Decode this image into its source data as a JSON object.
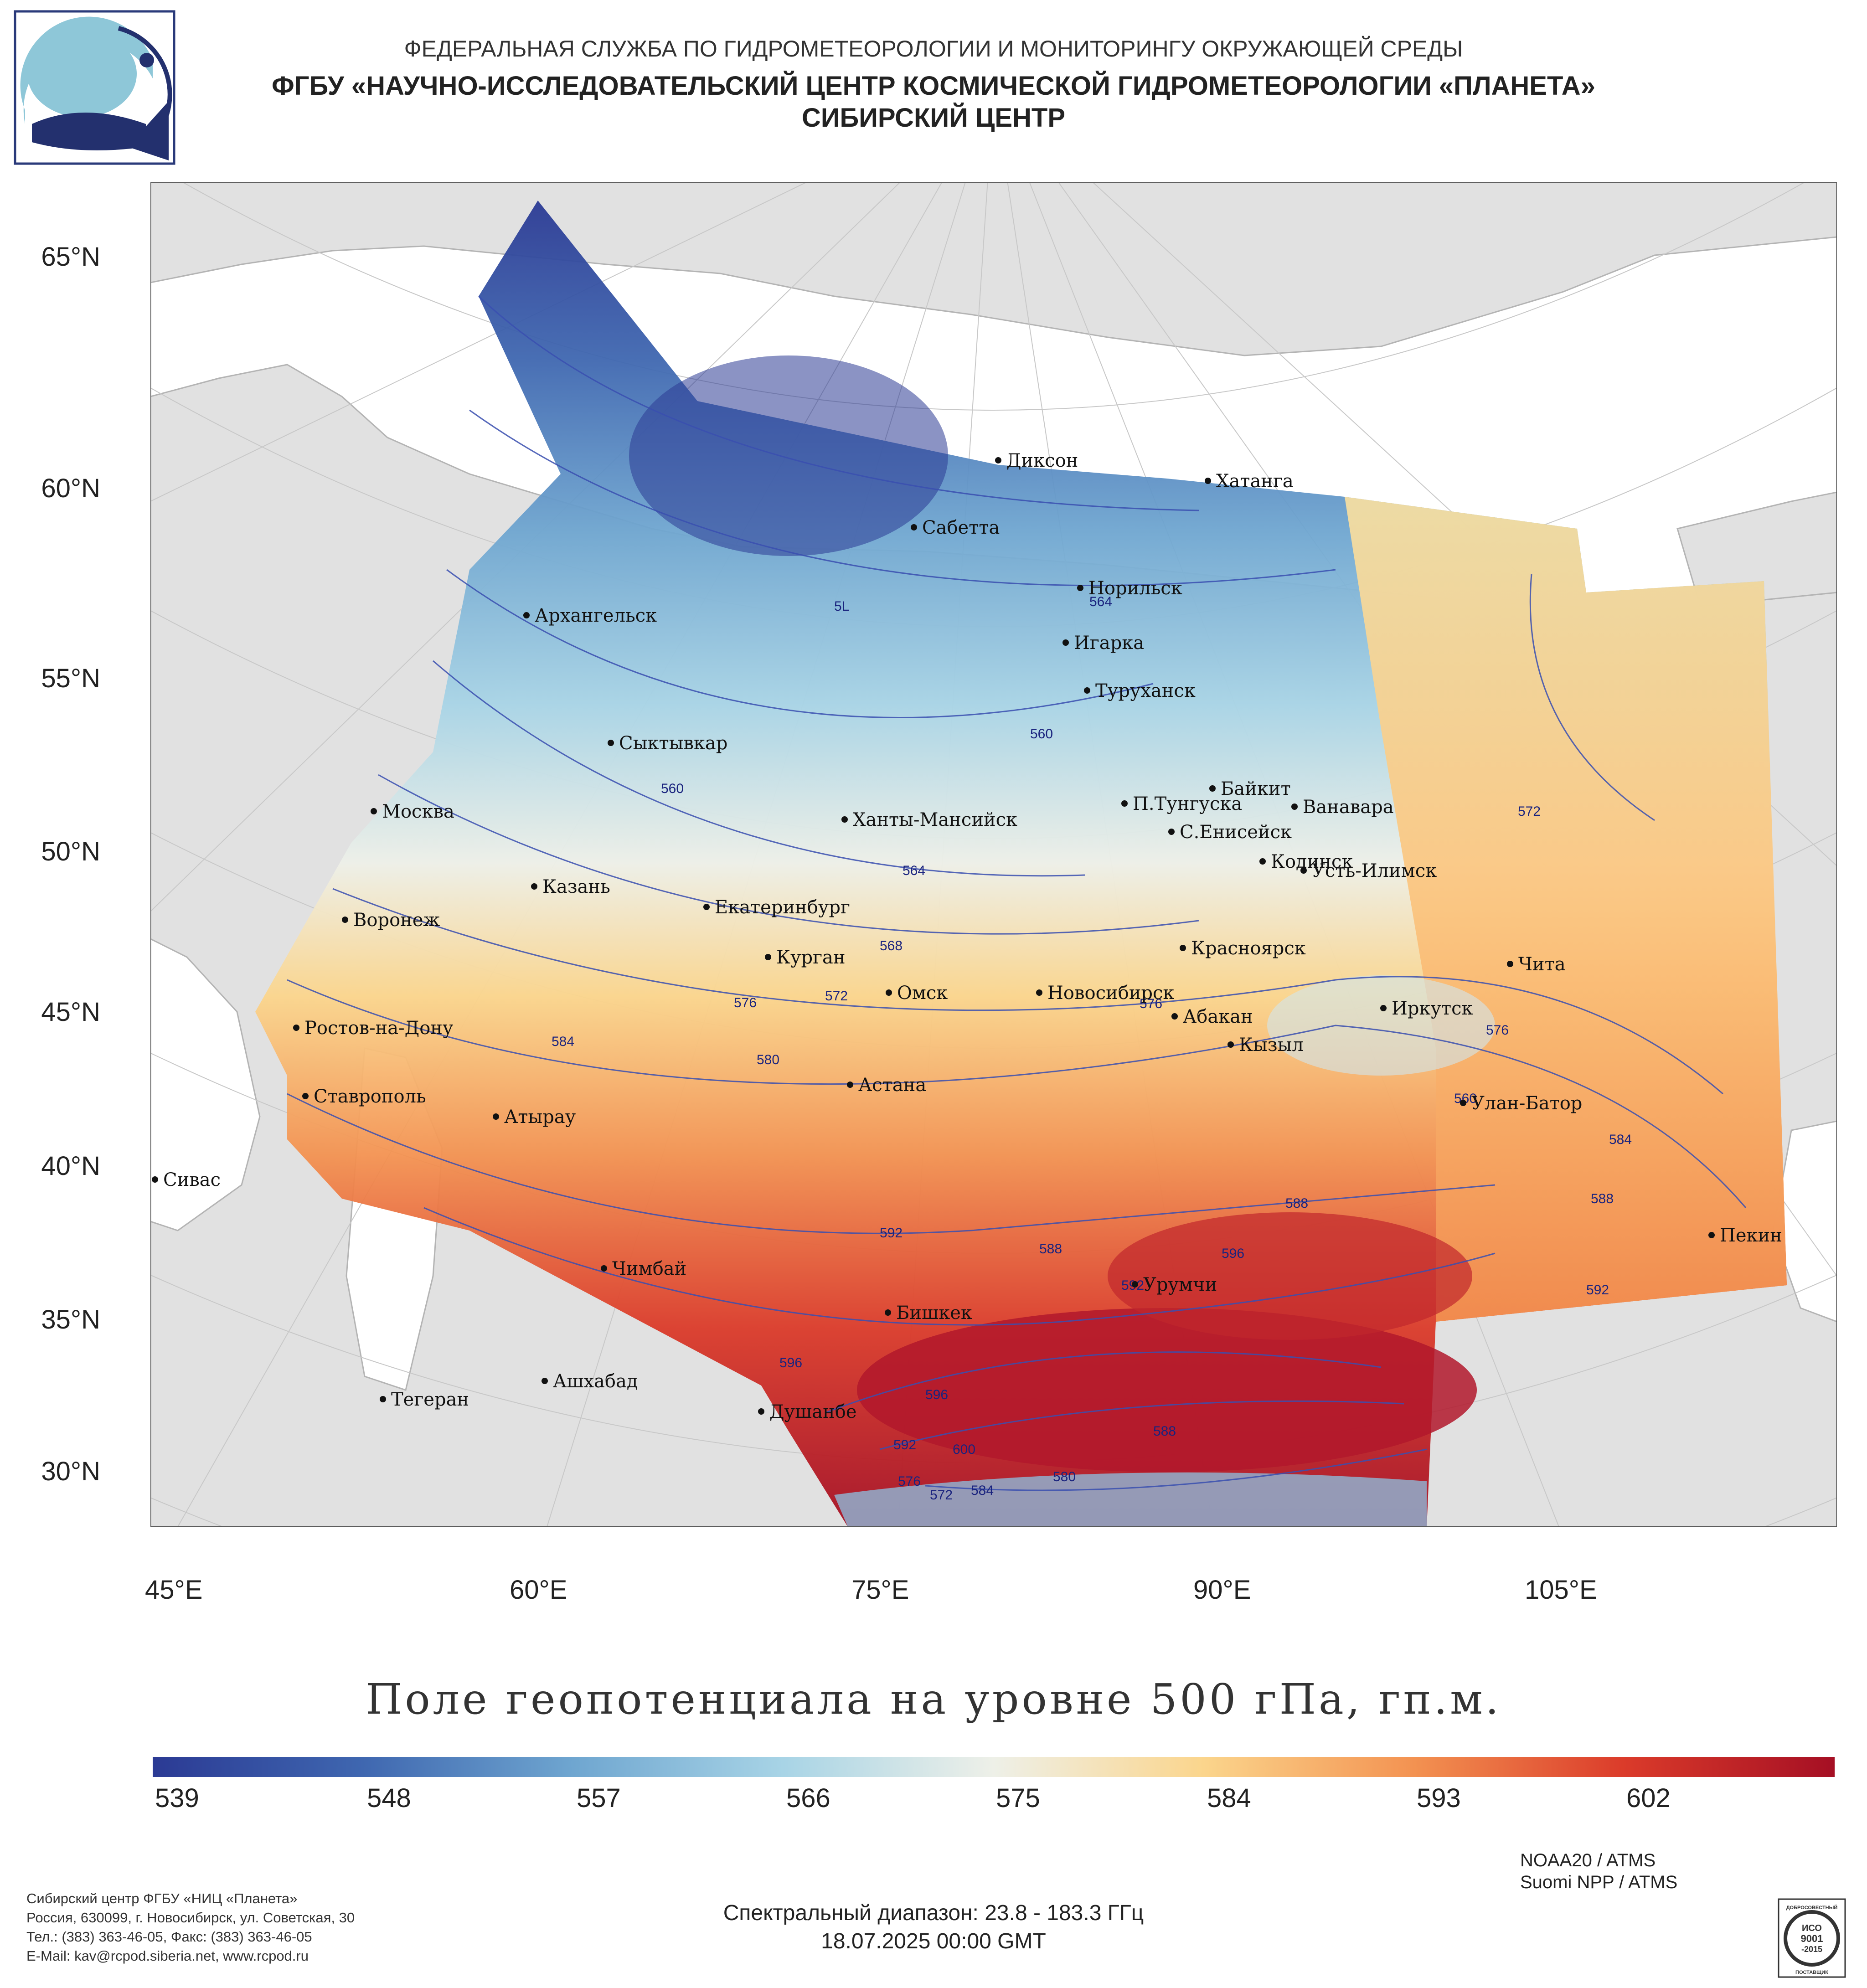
{
  "header": {
    "line1": "ФЕДЕРАЛЬНАЯ СЛУЖБА ПО ГИДРОМЕТЕОРОЛОГИИ И МОНИТОРИНГУ ОКРУЖАЮЩЕЙ СРЕДЫ",
    "line2": "ФГБУ «НАУЧНО-ИССЛЕДОВАТЕЛЬСКИЙ ЦЕНТР КОСМИЧЕСКОЙ ГИДРОМЕТЕОРОЛОГИИ «ПЛАНЕТА»",
    "line3": "СИБИРСКИЙ ЦЕНТР"
  },
  "map": {
    "title": "Поле геопотенциала на уровне 500 гПа, гп.м.",
    "lat_labels": [
      "65°N",
      "60°N",
      "55°N",
      "50°N",
      "45°N",
      "40°N",
      "35°N",
      "30°N"
    ],
    "lon_labels": [
      "45°E",
      "60°E",
      "75°E",
      "90°E",
      "105°E"
    ],
    "cities": [
      "Диксон",
      "Хатанга",
      "Сабетта",
      "Норильск",
      "Архангельск",
      "Игарка",
      "Туруханск",
      "Сыктывкар",
      "Байкит",
      "П.Тунгуска",
      "Ванавара",
      "Москва",
      "Ханты-Мансийск",
      "С.Енисейск",
      "Кодинск",
      "Усть-Илимск",
      "Казань",
      "Екатеринбург",
      "Воронеж",
      "Красноярск",
      "Курган",
      "Чита",
      "Омск",
      "Новосибирск",
      "Иркутск",
      "Абакан",
      "Ростов-на-Дону",
      "Кызыл",
      "Астана",
      "Ставрополь",
      "Улан-Батор",
      "Атырау",
      "Сивас",
      "Пекин",
      "Чимбай",
      "Урумчи",
      "Бишкек",
      "Ашхабад",
      "Тегеран",
      "Душанбе"
    ],
    "contour_labels": [
      "5L",
      "564",
      "560",
      "560",
      "564",
      "568",
      "572",
      "572",
      "576",
      "576",
      "580",
      "584",
      "576",
      "560",
      "584",
      "588",
      "592",
      "588",
      "592",
      "596",
      "588",
      "592",
      "596",
      "596",
      "592",
      "600",
      "588",
      "584",
      "580",
      "576",
      "572"
    ],
    "colors": {
      "land": "#e1e1e1",
      "sea": "#ffffff",
      "border": "#b4b4b4",
      "grid": "#c8c8c8",
      "contour": "#3a4fb0",
      "contour_label": "#1a237e"
    }
  },
  "colorbar": {
    "ticks": [
      "539",
      "548",
      "557",
      "566",
      "575",
      "584",
      "593",
      "602"
    ],
    "colors": [
      "#2b3a94",
      "#3f67b0",
      "#6fa6d0",
      "#a8d4e6",
      "#eef0e8",
      "#fbd58c",
      "#f39251",
      "#db3b2a",
      "#a50f24"
    ]
  },
  "footer": {
    "satellite1": "NOAA20 / ATMS",
    "satellite2": "Suomi NPP / ATMS",
    "spectral": "Спектральный диапазон: 23.8 - 183.3 ГГц",
    "datetime": "18.07.2025 00:00 GMT",
    "address": [
      "Сибирский центр ФГБУ «НИЦ «Планета»",
      "Россия, 630099, г. Новосибирск, ул. Советская, 30",
      "Тел.: (383) 363-46-05, Факс: (383) 363-46-05",
      "E-Mail: kav@rcpod.siberia.net, www.rcpod.ru"
    ],
    "iso": {
      "top": "ДОБРОСОВЕСТНЫЙ",
      "l1": "ИСО",
      "l2": "9001",
      "l3": "-2015",
      "bottom": "ПОСТАВЩИК"
    }
  }
}
